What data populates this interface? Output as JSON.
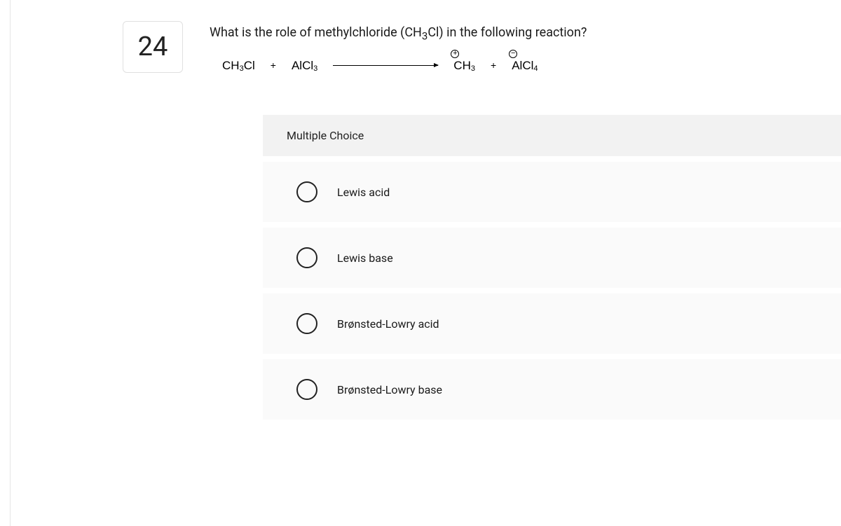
{
  "question": {
    "number": "24",
    "prompt_prefix": "What is the role of methylchloride (CH",
    "prompt_sub": "3",
    "prompt_suffix": "Cl) in the following reaction?"
  },
  "equation": {
    "reagent1": {
      "text": "CH",
      "sub": "3",
      "tail": "Cl"
    },
    "plus1": "+",
    "reagent2": {
      "text": "AlCl",
      "sub": "3"
    },
    "product1": {
      "charge": "+",
      "text": "CH",
      "sub": "3"
    },
    "plus2": "+",
    "product2": {
      "charge": "−",
      "text": "AlCl",
      "sub": "4"
    }
  },
  "section_label": "Multiple Choice",
  "options": [
    {
      "label": "Lewis acid"
    },
    {
      "label": "Lewis base"
    },
    {
      "label": "Brønsted-Lowry acid"
    },
    {
      "label": "Brønsted-Lowry base"
    }
  ],
  "colors": {
    "option_bg": "#fafafa",
    "header_bg": "#f2f2f2",
    "border": "#e0e0e0",
    "text": "#1a1a1a"
  }
}
